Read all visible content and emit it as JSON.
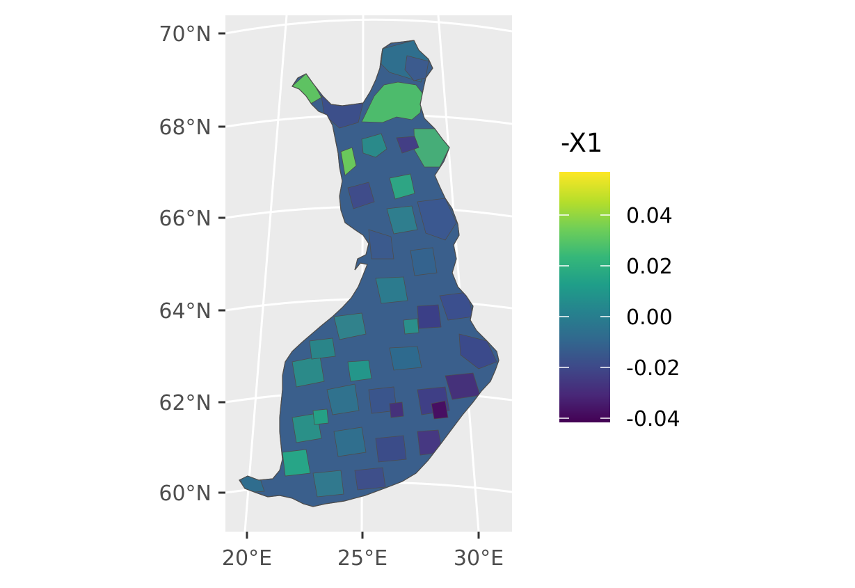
{
  "map": {
    "region": "Finland",
    "projection": "conic",
    "panel_background": "#ebebeb",
    "graticule_color": "#ffffff",
    "border_color": "#4d4d4d",
    "lat_labels": [
      "70°N",
      "68°N",
      "66°N",
      "64°N",
      "62°N",
      "60°N"
    ],
    "lon_labels": [
      "20°E",
      "25°E",
      "30°E"
    ]
  },
  "legend": {
    "title": "-X1",
    "labels": [
      "0.04",
      "0.02",
      "0.00",
      "-0.02",
      "-0.04"
    ],
    "colormap": "viridis",
    "range": [
      -0.045,
      0.065
    ],
    "stops": [
      "#440154",
      "#482878",
      "#3e4989",
      "#31688e",
      "#26828e",
      "#1f9e89",
      "#35b779",
      "#6ece58",
      "#b5de2b",
      "#fde725"
    ]
  }
}
